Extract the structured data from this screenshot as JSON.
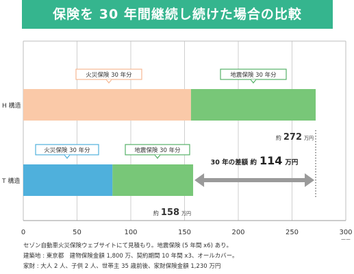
{
  "header": {
    "title": "保険を 30 年間継続し続けた場合の比較"
  },
  "chart_data": {
    "type": "bar",
    "orientation": "horizontal",
    "stacked": true,
    "categories": [
      "H 構造",
      "T 構造"
    ],
    "series": [
      {
        "name": "火災保険 30 年分",
        "values": [
          156,
          83
        ],
        "color": "#fac9a8"
      },
      {
        "name": "地震保険 30 年分",
        "values": [
          116,
          75
        ],
        "color": "#78c778"
      }
    ],
    "bar_labels": {
      "fire": "火災保険 30 年分",
      "quake": "地震保険 30 年分"
    },
    "totals": [
      {
        "prefix": "約",
        "value": "272",
        "unit": "万円"
      },
      {
        "prefix": "約",
        "value": "158",
        "unit": "万円"
      }
    ],
    "difference": {
      "label": "30 年の差額 約",
      "value": "114",
      "unit": "万円"
    },
    "t_fire_color": "#4fb0dc",
    "xlim": [
      0,
      300
    ],
    "xticks": [
      "0",
      "50",
      "100",
      "150",
      "200",
      "250",
      "300"
    ],
    "x_unit": "万円",
    "grid": true
  },
  "notes": [
    "セゾン自動車火災保険ウェブサイトにて見積もり。地震保険 (5 年間 x6) あり。",
    "建築地 : 東京都　建物保険金額 1,800 万、契約期間 10 年間 x3、オールカバー。",
    "家財 : 大人 2 人、子供 2 人、世帯主 35 歳前後、家財保険金額 1,230 万円"
  ]
}
